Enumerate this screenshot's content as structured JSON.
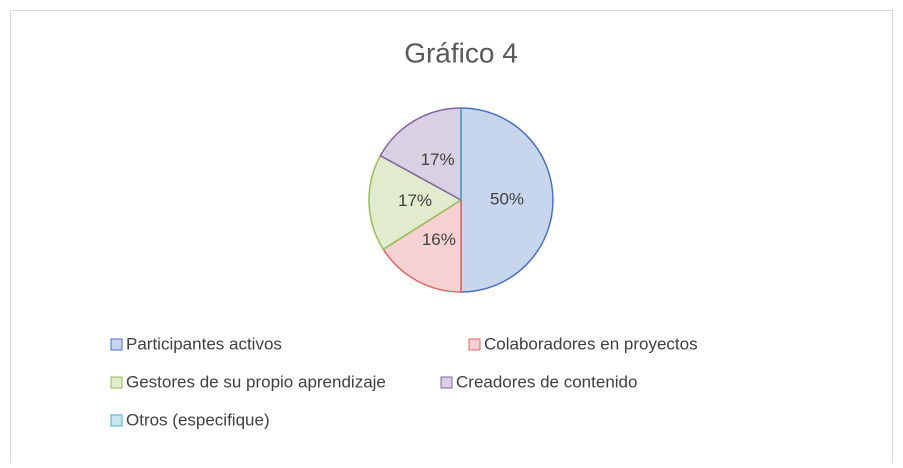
{
  "chart_data": {
    "type": "pie",
    "title": "Gráfico 4",
    "categories": [
      "Participantes activos",
      "Colaboradores en proyectos",
      "Gestores de su propio aprendizaje",
      "Creadores de contenido",
      "Otros (especifique)"
    ],
    "values": [
      50,
      16,
      17,
      17,
      0
    ],
    "value_labels": [
      "50%",
      "16%",
      "17%",
      "17%",
      null
    ],
    "colors": [
      "#4472c4",
      "#e06666",
      "#9bbb59",
      "#8064a2",
      "#4bacc6"
    ],
    "legend": "bottom"
  }
}
